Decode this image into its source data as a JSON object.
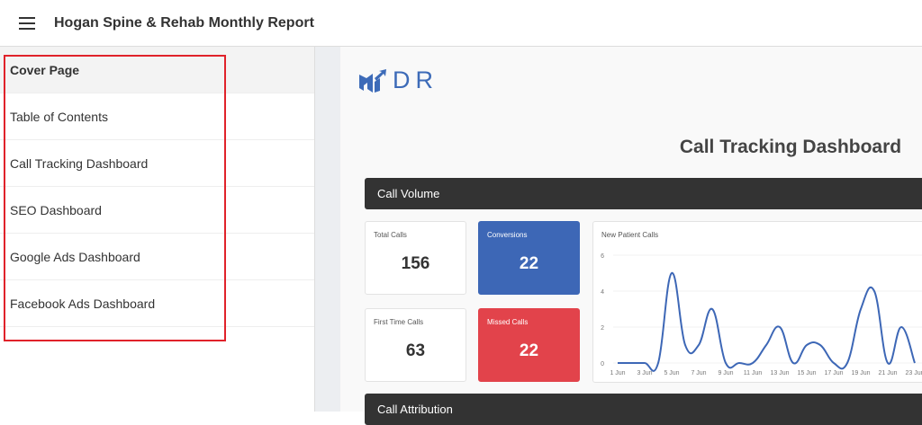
{
  "header": {
    "title": "Hogan Spine & Rehab Monthly Report"
  },
  "sidebar": {
    "items": [
      {
        "label": "Cover Page",
        "active": true
      },
      {
        "label": "Table of Contents"
      },
      {
        "label": "Call Tracking Dashboard"
      },
      {
        "label": "SEO Dashboard"
      },
      {
        "label": "Google Ads Dashboard"
      },
      {
        "label": "Facebook Ads Dashboard"
      }
    ]
  },
  "logo": {
    "text": "DR",
    "color": "#3d6bb8"
  },
  "main": {
    "title": "Call Tracking Dashboard",
    "section1": "Call Volume",
    "section2": "Call Attribution",
    "cards": [
      {
        "label": "Total Calls",
        "value": "156"
      },
      {
        "label": "Conversions",
        "value": "22",
        "color": "#3d67b6"
      },
      {
        "label": "First Time Calls",
        "value": "63"
      },
      {
        "label": "Missed Calls",
        "value": "22",
        "color": "#e2434b"
      }
    ]
  },
  "chart_data": {
    "type": "line",
    "title": "New Patient Calls",
    "x": [
      "1 Jun",
      "2 Jun",
      "3 Jun",
      "4 Jun",
      "5 Jun",
      "6 Jun",
      "7 Jun",
      "8 Jun",
      "9 Jun",
      "10 Jun",
      "11 Jun",
      "12 Jun",
      "13 Jun",
      "14 Jun",
      "15 Jun",
      "16 Jun",
      "17 Jun",
      "18 Jun",
      "19 Jun",
      "20 Jun",
      "21 Jun",
      "22 Jun",
      "23 Jun"
    ],
    "values": [
      0,
      0,
      0,
      0,
      5,
      1,
      1,
      3,
      0,
      0,
      0,
      1,
      2,
      0,
      1,
      1,
      0,
      0,
      3,
      4,
      0,
      2,
      0
    ],
    "ylim": [
      0,
      6
    ],
    "yticks": [
      "0",
      "2",
      "4",
      "6"
    ],
    "xticks": [
      "1 Jun",
      "3 Jun",
      "5 Jun",
      "7 Jun",
      "9 Jun",
      "11 Jun",
      "13 Jun",
      "15 Jun",
      "17 Jun",
      "19 Jun",
      "21 Jun",
      "23 Jun"
    ],
    "color": "#3d67b6",
    "grid": true
  }
}
